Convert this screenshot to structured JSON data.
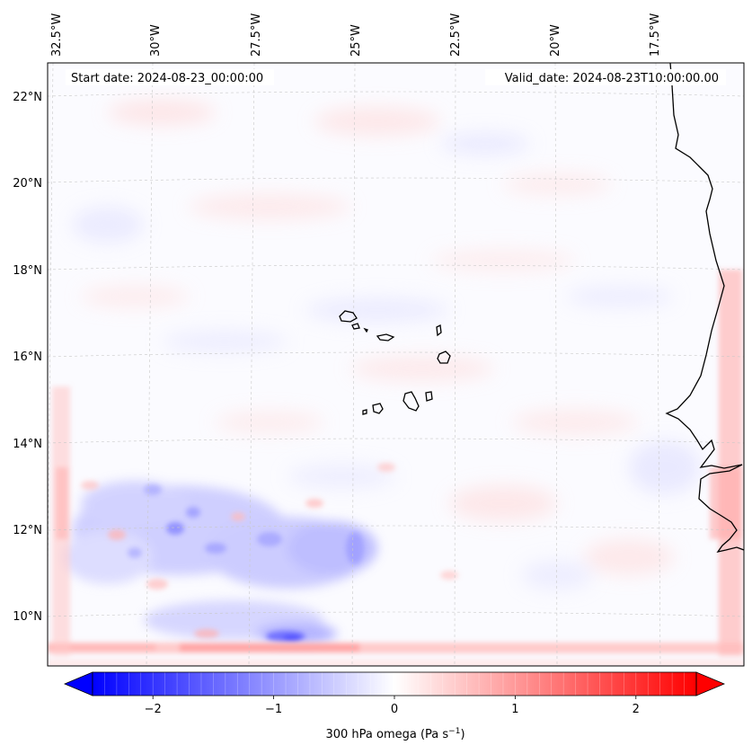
{
  "map": {
    "start_label": "Start date: 2024-08-23_00:00:00",
    "valid_label": "Valid_date: 2024-08-23T10:00:00.00",
    "lon_labels": [
      "32.5°W",
      "30°W",
      "27.5°W",
      "25°W",
      "22.5°W",
      "20°W",
      "17.5°W"
    ],
    "lat_labels": [
      "22°N",
      "20°N",
      "18°N",
      "16°N",
      "14°N",
      "12°N",
      "10°N"
    ],
    "region": "Cabo Verde and West African coast (Senegal / Gambia)"
  },
  "colorbar": {
    "label_prefix": "300 hPa omega (Pa s",
    "label_sup": "−1",
    "label_suffix": ")",
    "ticks": [
      "−2",
      "−1",
      "0",
      "1",
      "2"
    ],
    "tick_values": [
      -2,
      -1,
      0,
      1,
      2
    ],
    "vmin": -2.5,
    "vmax": 2.5,
    "extend": "both",
    "colors": {
      "negative": "#0000ff",
      "zero": "#ffffff",
      "positive": "#ff0000"
    }
  }
}
